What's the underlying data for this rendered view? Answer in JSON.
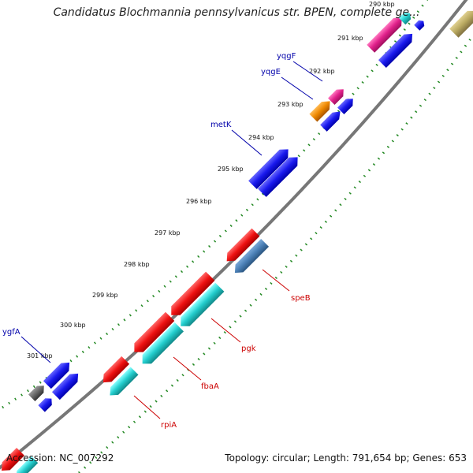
{
  "title": "Candidatus Blochmannia pennsylvanicus str. BPEN, complete ge...",
  "footer": {
    "accession": "Accession: NC_007292",
    "topology": "Topology: circular; Length: 791,654 bp; Genes: 653"
  },
  "kbp_ticks": [
    {
      "label": "290 kbp"
    },
    {
      "label": "291 kbp"
    },
    {
      "label": "292 kbp"
    },
    {
      "label": "293 kbp"
    },
    {
      "label": "294 kbp"
    },
    {
      "label": "295 kbp"
    },
    {
      "label": "296 kbp"
    },
    {
      "label": "297 kbp"
    },
    {
      "label": "298 kbp"
    },
    {
      "label": "299 kbp"
    },
    {
      "label": "300 kbp"
    },
    {
      "label": "301 kbp"
    }
  ],
  "gene_labels": [
    {
      "label": "yqgF",
      "color": "#0000aa"
    },
    {
      "label": "yqgE",
      "color": "#0000aa"
    },
    {
      "label": "metK",
      "color": "#0000aa"
    },
    {
      "label": "ygfA",
      "color": "#0000aa"
    },
    {
      "label": "speB",
      "color": "#cc0000"
    },
    {
      "label": "pgk",
      "color": "#cc0000"
    },
    {
      "label": "fbaA",
      "color": "#cc0000"
    },
    {
      "label": "rpiA",
      "color": "#cc0000"
    }
  ],
  "colors": {
    "forward_cds": "#1a1aee",
    "reverse_cds": "#ee1111",
    "cyan_feature": "#22cccc",
    "steelblue_feature": "#4a7fb5",
    "magenta_feature": "#e0208a",
    "orange_feature": "#ee8800",
    "gray_feature": "#666666",
    "olive_feature": "#b8a860",
    "backbone": "#777777",
    "ticks": "#228822"
  }
}
